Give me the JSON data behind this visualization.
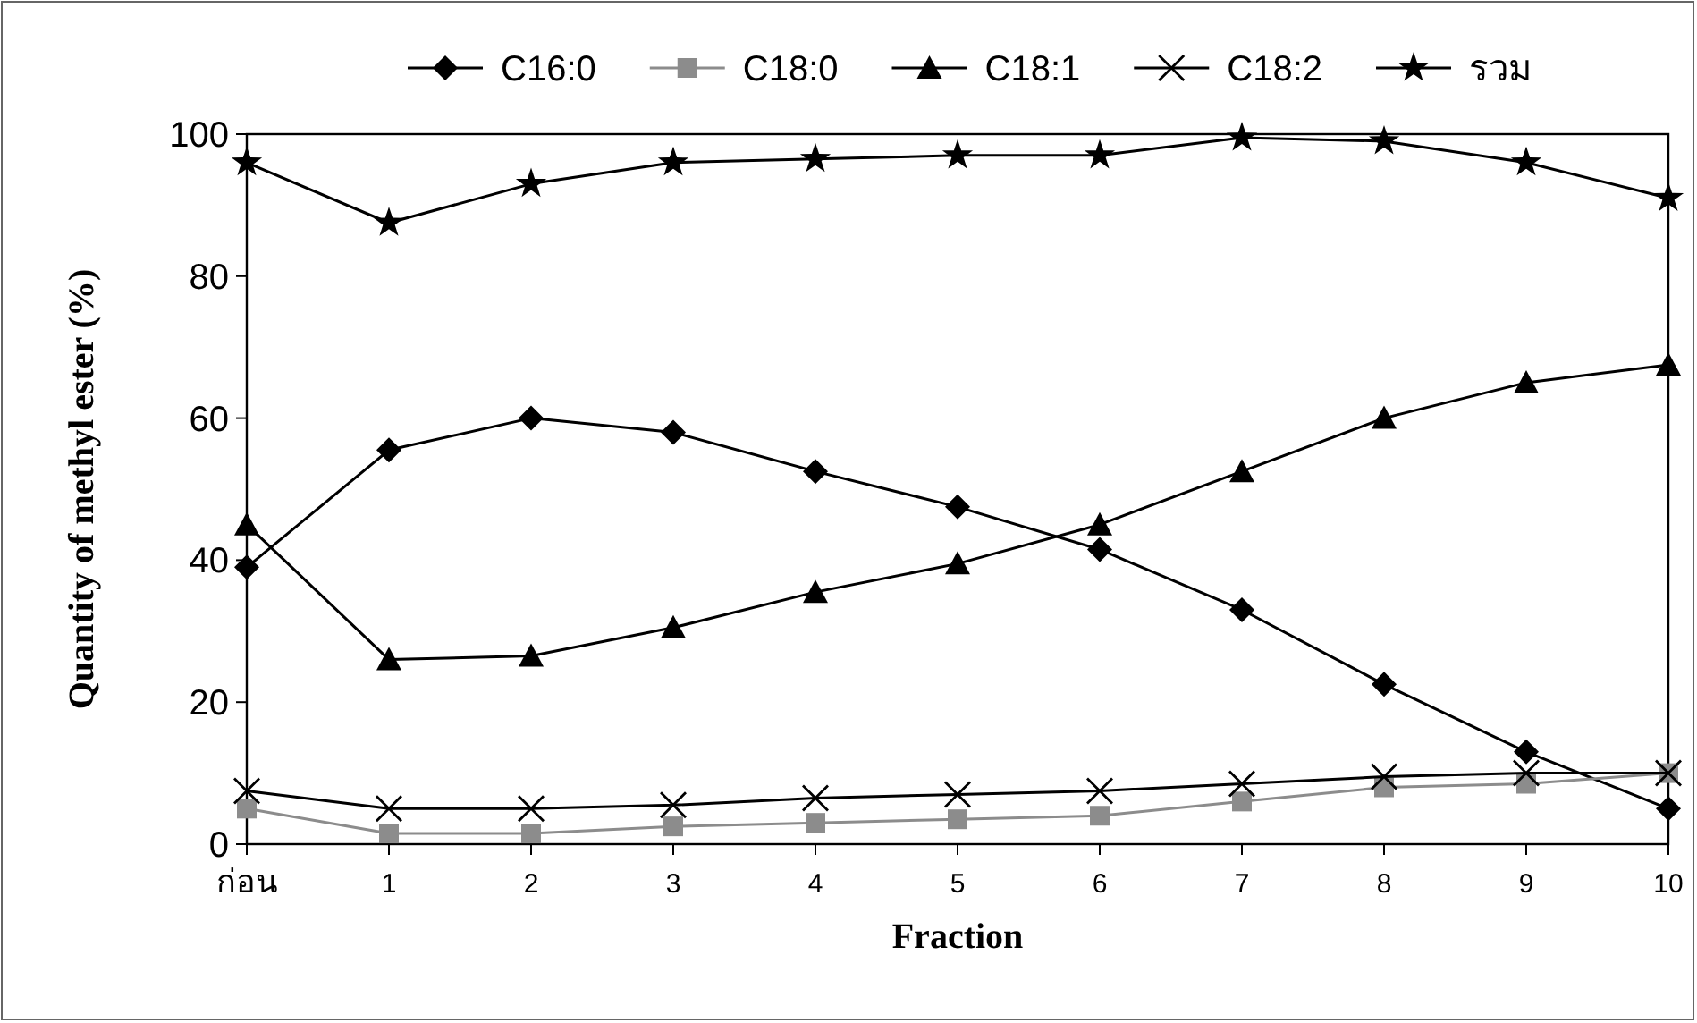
{
  "chart_data": {
    "type": "line",
    "xlabel": "Fraction",
    "ylabel": "Quantity of methyl ester (%)",
    "categories": [
      "ก่อน",
      "1",
      "2",
      "3",
      "4",
      "5",
      "6",
      "7",
      "8",
      "9",
      "10"
    ],
    "ylim": [
      0,
      100
    ],
    "yticks": [
      0,
      20,
      40,
      60,
      80,
      100
    ],
    "grid": false,
    "legend": "top",
    "series": [
      {
        "name": "C16:0",
        "color": "#000000",
        "marker": "diamond",
        "values": [
          39,
          55.5,
          60,
          58,
          52.5,
          47.5,
          41.5,
          33,
          22.5,
          13,
          5
        ]
      },
      {
        "name": "C18:0",
        "color": "#8c8c8c",
        "marker": "square",
        "values": [
          5,
          1.5,
          1.5,
          2.5,
          3,
          3.5,
          4,
          6,
          8,
          8.5,
          10
        ]
      },
      {
        "name": "C18:1",
        "color": "#000000",
        "marker": "triangle",
        "values": [
          45,
          26,
          26.5,
          30.5,
          35.5,
          39.5,
          45,
          52.5,
          60,
          65,
          67.5
        ]
      },
      {
        "name": "C18:2",
        "color": "#000000",
        "marker": "cross",
        "values": [
          7.5,
          5,
          5,
          5.5,
          6.5,
          7,
          7.5,
          8.5,
          9.5,
          10,
          10
        ]
      },
      {
        "name": "รวม",
        "color": "#000000",
        "marker": "star",
        "values": [
          96,
          87.5,
          93,
          96,
          96.5,
          97,
          97,
          99.5,
          99,
          96,
          91
        ]
      }
    ]
  }
}
